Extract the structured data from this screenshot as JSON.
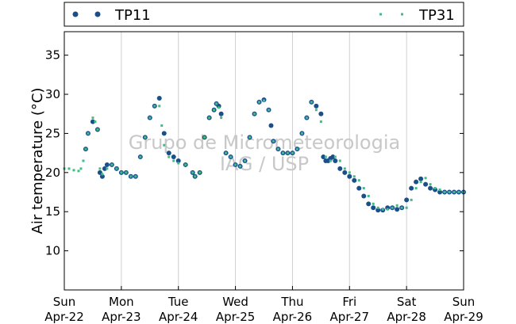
{
  "chart_data": {
    "type": "scatter",
    "ylabel": "Air temperature (°C)",
    "xlabel": "",
    "title": "",
    "xlim": [
      "2024-04-22T00:00",
      "2024-04-29T00:00"
    ],
    "ylim": [
      5,
      38
    ],
    "y_ticks": [
      10,
      15,
      20,
      25,
      30,
      35
    ],
    "x_ticks": [
      {
        "day": "Sun",
        "date": "Apr-22"
      },
      {
        "day": "Mon",
        "date": "Apr-23"
      },
      {
        "day": "Tue",
        "date": "Apr-24"
      },
      {
        "day": "Wed",
        "date": "Apr-25"
      },
      {
        "day": "Thu",
        "date": "Apr-26"
      },
      {
        "day": "Fri",
        "date": "Apr-27"
      },
      {
        "day": "Sat",
        "date": "Apr-28"
      },
      {
        "day": "Sun",
        "date": "Apr-29"
      }
    ],
    "grid": "vertical",
    "legend": "top",
    "watermark": [
      "Grupo de Micrometeorologia",
      "IAG / USP"
    ],
    "series": [
      {
        "name": "TP11",
        "color": "#1a4f8a",
        "marker": "circle",
        "x": [
          "2024-04-22T09:00",
          "2024-04-22T10:00",
          "2024-04-22T12:00",
          "2024-04-22T14:00",
          "2024-04-22T15:00",
          "2024-04-22T16:00",
          "2024-04-22T17:00",
          "2024-04-22T18:00",
          "2024-04-22T20:00",
          "2024-04-22T22:00",
          "2024-04-23T00:00",
          "2024-04-23T02:00",
          "2024-04-23T04:00",
          "2024-04-23T06:00",
          "2024-04-23T08:00",
          "2024-04-23T10:00",
          "2024-04-23T12:00",
          "2024-04-23T14:00",
          "2024-04-23T16:00",
          "2024-04-23T18:00",
          "2024-04-23T20:00",
          "2024-04-23T22:00",
          "2024-04-24T00:00",
          "2024-04-24T03:00",
          "2024-04-24T06:00",
          "2024-04-24T07:00",
          "2024-04-24T09:00",
          "2024-04-24T11:00",
          "2024-04-24T13:00",
          "2024-04-24T15:00",
          "2024-04-24T16:00",
          "2024-04-24T17:00",
          "2024-04-24T18:00",
          "2024-04-24T20:00",
          "2024-04-24T22:00",
          "2024-04-25T00:00",
          "2024-04-25T02:00",
          "2024-04-25T04:00",
          "2024-04-25T06:00",
          "2024-04-25T08:00",
          "2024-04-25T10:00",
          "2024-04-25T12:00",
          "2024-04-25T14:00",
          "2024-04-25T15:00",
          "2024-04-25T16:00",
          "2024-04-25T18:00",
          "2024-04-25T20:00",
          "2024-04-25T22:00",
          "2024-04-26T00:00",
          "2024-04-26T02:00",
          "2024-04-26T04:00",
          "2024-04-26T06:00",
          "2024-04-26T08:00",
          "2024-04-26T10:00",
          "2024-04-26T12:00",
          "2024-04-26T13:00",
          "2024-04-26T14:00",
          "2024-04-26T15:00",
          "2024-04-26T16:00",
          "2024-04-26T17:00",
          "2024-04-26T18:00",
          "2024-04-26T20:00",
          "2024-04-26T22:00",
          "2024-04-27T00:00",
          "2024-04-27T02:00",
          "2024-04-27T04:00",
          "2024-04-27T06:00",
          "2024-04-27T08:00",
          "2024-04-27T10:00",
          "2024-04-27T12:00",
          "2024-04-27T14:00",
          "2024-04-27T16:00",
          "2024-04-27T18:00",
          "2024-04-27T20:00",
          "2024-04-27T22:00",
          "2024-04-28T00:00",
          "2024-04-28T02:00",
          "2024-04-28T04:00",
          "2024-04-28T06:00",
          "2024-04-28T08:00",
          "2024-04-28T10:00",
          "2024-04-28T12:00",
          "2024-04-28T14:00",
          "2024-04-28T16:00",
          "2024-04-28T18:00",
          "2024-04-28T20:00",
          "2024-04-28T22:00",
          "2024-04-29T00:00"
        ],
        "y": [
          23.0,
          25.0,
          26.5,
          25.5,
          20.0,
          19.5,
          20.5,
          21.0,
          21.0,
          20.5,
          20.0,
          20.0,
          19.5,
          19.5,
          22.0,
          24.5,
          27.0,
          28.5,
          29.5,
          25.0,
          22.5,
          22.0,
          21.5,
          21.0,
          20.0,
          19.5,
          20.0,
          24.5,
          27.0,
          28.0,
          28.8,
          28.5,
          27.5,
          22.5,
          22.0,
          21.0,
          20.8,
          21.5,
          24.5,
          27.5,
          29.0,
          29.3,
          28.0,
          26.0,
          24.0,
          23.0,
          22.5,
          22.5,
          22.5,
          23.0,
          25.0,
          27.0,
          29.0,
          28.5,
          27.5,
          22.0,
          21.5,
          21.5,
          21.8,
          22.0,
          21.5,
          20.5,
          20.0,
          19.5,
          19.0,
          18.0,
          17.0,
          16.0,
          15.5,
          15.2,
          15.2,
          15.5,
          15.5,
          15.3,
          15.5,
          16.5,
          18.0,
          18.8,
          19.2,
          18.5,
          18.0,
          17.8,
          17.5,
          17.5,
          17.5,
          17.5,
          17.5,
          17.5
        ]
      },
      {
        "name": "TP31",
        "color": "#3dbf83",
        "marker": "square",
        "x": [
          "2024-04-22T00:00",
          "2024-04-22T02:00",
          "2024-04-22T04:00",
          "2024-04-22T06:00",
          "2024-04-22T07:00",
          "2024-04-22T08:00",
          "2024-04-22T09:00",
          "2024-04-22T10:00",
          "2024-04-22T12:00",
          "2024-04-22T13:00",
          "2024-04-22T14:00",
          "2024-04-22T15:00",
          "2024-04-22T16:00",
          "2024-04-22T18:00",
          "2024-04-22T20:00",
          "2024-04-22T22:00",
          "2024-04-23T00:00",
          "2024-04-23T02:00",
          "2024-04-23T04:00",
          "2024-04-23T06:00",
          "2024-04-23T08:00",
          "2024-04-23T10:00",
          "2024-04-23T12:00",
          "2024-04-23T14:00",
          "2024-04-23T16:00",
          "2024-04-23T17:00",
          "2024-04-23T18:00",
          "2024-04-23T20:00",
          "2024-04-23T22:00",
          "2024-04-24T00:00",
          "2024-04-24T03:00",
          "2024-04-24T06:00",
          "2024-04-24T07:00",
          "2024-04-24T09:00",
          "2024-04-24T11:00",
          "2024-04-24T13:00",
          "2024-04-24T15:00",
          "2024-04-24T16:00",
          "2024-04-24T17:00",
          "2024-04-24T18:00",
          "2024-04-24T20:00",
          "2024-04-24T22:00",
          "2024-04-25T00:00",
          "2024-04-25T02:00",
          "2024-04-25T04:00",
          "2024-04-25T06:00",
          "2024-04-25T08:00",
          "2024-04-25T10:00",
          "2024-04-25T12:00",
          "2024-04-25T14:00",
          "2024-04-25T16:00",
          "2024-04-25T18:00",
          "2024-04-25T20:00",
          "2024-04-25T22:00",
          "2024-04-26T00:00",
          "2024-04-26T02:00",
          "2024-04-26T04:00",
          "2024-04-26T06:00",
          "2024-04-26T08:00",
          "2024-04-26T10:00",
          "2024-04-26T12:00",
          "2024-04-26T14:00",
          "2024-04-26T16:00",
          "2024-04-26T18:00",
          "2024-04-26T20:00",
          "2024-04-26T22:00",
          "2024-04-27T00:00",
          "2024-04-27T02:00",
          "2024-04-27T04:00",
          "2024-04-27T06:00",
          "2024-04-27T08:00",
          "2024-04-27T10:00",
          "2024-04-27T12:00",
          "2024-04-27T14:00",
          "2024-04-27T16:00",
          "2024-04-27T18:00",
          "2024-04-27T20:00",
          "2024-04-27T22:00",
          "2024-04-28T00:00",
          "2024-04-28T02:00",
          "2024-04-28T04:00",
          "2024-04-28T06:00",
          "2024-04-28T08:00",
          "2024-04-28T10:00",
          "2024-04-28T12:00",
          "2024-04-28T14:00",
          "2024-04-28T16:00",
          "2024-04-28T18:00",
          "2024-04-28T20:00",
          "2024-04-28T22:00",
          "2024-04-29T00:00"
        ],
        "y": [
          20.5,
          20.5,
          20.3,
          20.2,
          20.5,
          21.5,
          23.0,
          25.0,
          27.0,
          26.5,
          25.5,
          20.5,
          19.8,
          20.5,
          21.0,
          20.5,
          20.0,
          20.0,
          19.5,
          19.5,
          22.0,
          24.5,
          27.0,
          28.5,
          28.5,
          26.0,
          23.5,
          22.0,
          21.5,
          21.2,
          21.0,
          20.0,
          19.5,
          20.0,
          24.5,
          27.0,
          28.0,
          28.8,
          28.3,
          27.0,
          22.5,
          22.0,
          21.0,
          20.8,
          21.5,
          24.5,
          27.5,
          29.0,
          29.2,
          28.0,
          24.0,
          23.0,
          22.5,
          22.5,
          22.5,
          23.0,
          25.0,
          27.0,
          29.0,
          28.0,
          26.5,
          22.0,
          21.5,
          22.0,
          21.5,
          20.5,
          20.0,
          19.5,
          19.0,
          18.0,
          17.0,
          16.0,
          15.5,
          15.3,
          15.3,
          15.5,
          15.8,
          15.5,
          15.5,
          16.5,
          18.0,
          18.8,
          19.3,
          18.5,
          18.0,
          17.8,
          17.5,
          17.5,
          17.5,
          17.5,
          17.5
        ]
      }
    ]
  }
}
